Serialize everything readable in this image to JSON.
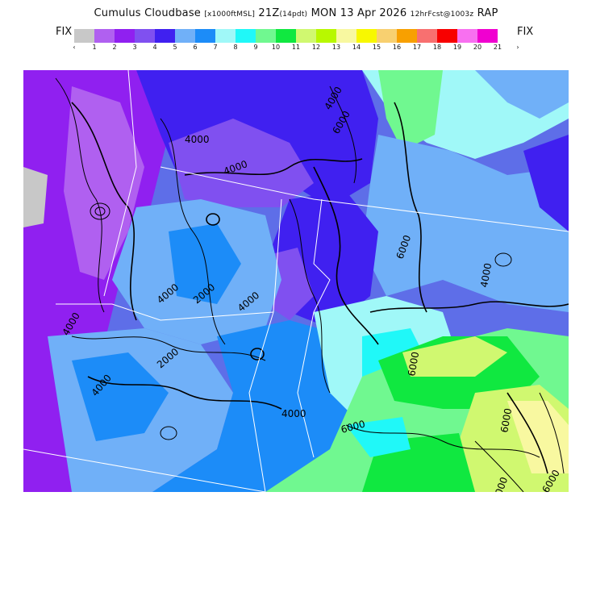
{
  "header": {
    "title_main": "Cumulus Cloudbase",
    "title_units": "[x1000ftMSL]",
    "title_time": "21Z",
    "title_pdt": "(14pdt)",
    "title_date": "MON 13 Apr 2026",
    "title_fcst": "12hrFcst@1003z",
    "title_model": "RAP"
  },
  "legend": {
    "fix_left": "FIX",
    "fix_right": "FIX",
    "colors": [
      "#c8c8c8",
      "#b060f0",
      "#9020f0",
      "#8050f0",
      "#4020f0",
      "#70b0f8",
      "#1c8cf8",
      "#a0f8f8",
      "#20f8f8",
      "#70f890",
      "#10e840",
      "#d0f870",
      "#b8f800",
      "#f8f8a0",
      "#f8f800",
      "#f8d070",
      "#f8a000",
      "#f87070",
      "#f80000",
      "#f870f0",
      "#f000d0"
    ],
    "labels": [
      "‹",
      "1",
      "2",
      "3",
      "4",
      "5",
      "6",
      "7",
      "8",
      "9",
      "10",
      "11",
      "12",
      "13",
      "14",
      "15",
      "16",
      "17",
      "18",
      "19",
      "20",
      "21",
      "›"
    ]
  },
  "map": {
    "contour_labels": [
      "4000",
      "4000",
      "4000",
      "4000",
      "4000",
      "4000",
      "4000",
      "4000",
      "6000",
      "6000",
      "6000",
      "6000",
      "6000",
      "2000",
      "2000",
      "4000",
      "6000",
      "6000"
    ]
  }
}
